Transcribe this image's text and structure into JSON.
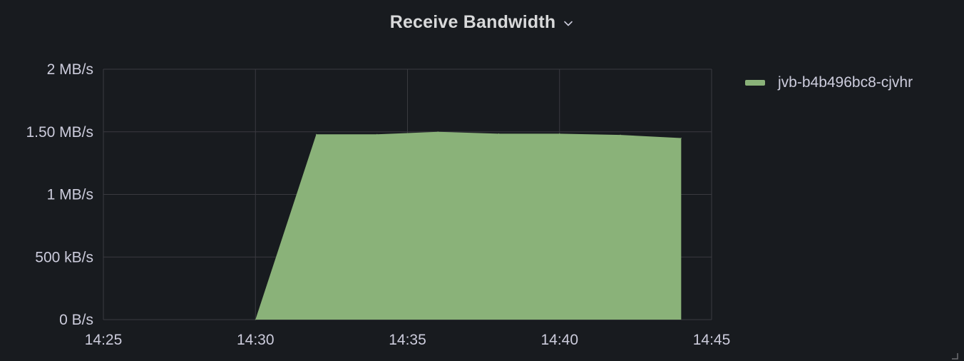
{
  "panel": {
    "title": "Receive Bandwidth",
    "menu_icon": "chevron-down-icon",
    "resize_icon": "resize-corner-icon"
  },
  "colors": {
    "background": "#181b1f",
    "grid": "#3a3b40",
    "tick_text": "#ccccdc",
    "series": "#8ab279"
  },
  "chart_data": {
    "type": "area",
    "title": "Receive Bandwidth",
    "xlabel": "",
    "ylabel": "",
    "grid": true,
    "legend_position": "right",
    "xlim": [
      "14:25",
      "14:45"
    ],
    "ylim": [
      0,
      2000000
    ],
    "y_unit": "bytes/s",
    "x_ticks": [
      "14:25",
      "14:30",
      "14:35",
      "14:40",
      "14:45"
    ],
    "y_ticks": [
      {
        "value": 0,
        "label": "0 B/s"
      },
      {
        "value": 500000,
        "label": "500 kB/s"
      },
      {
        "value": 1000000,
        "label": "1 MB/s"
      },
      {
        "value": 1500000,
        "label": "1.50 MB/s"
      },
      {
        "value": 2000000,
        "label": "2 MB/s"
      }
    ],
    "series": [
      {
        "name": "jvb-b4b496bc8-cjvhr",
        "color": "#8ab279",
        "points": [
          {
            "x": "14:30",
            "y": 0
          },
          {
            "x": "14:32",
            "y": 1480000
          },
          {
            "x": "14:34",
            "y": 1480000
          },
          {
            "x": "14:36",
            "y": 1500000
          },
          {
            "x": "14:38",
            "y": 1485000
          },
          {
            "x": "14:40",
            "y": 1485000
          },
          {
            "x": "14:42",
            "y": 1475000
          },
          {
            "x": "14:44",
            "y": 1450000
          }
        ]
      }
    ]
  }
}
